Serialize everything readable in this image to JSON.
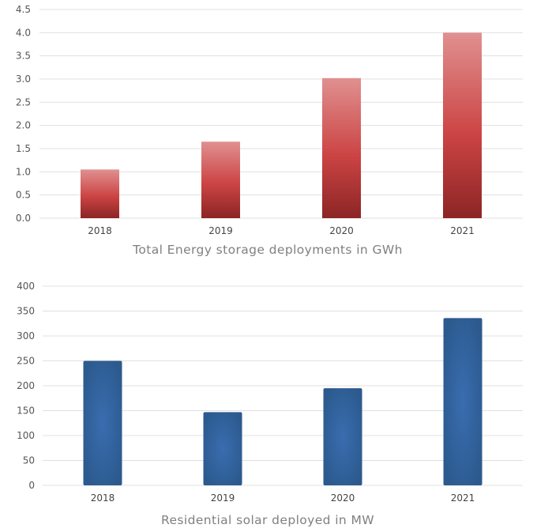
{
  "chart_data": [
    {
      "type": "bar",
      "title": "Total Energy storage deployments in GWh",
      "xlabel": "",
      "ylabel": "",
      "categories": [
        "2018",
        "2019",
        "2020",
        "2021"
      ],
      "values": [
        1.05,
        1.65,
        3.02,
        4.0
      ],
      "yticks": [
        "0.0",
        "0.5",
        "1.0",
        "1.5",
        "2.0",
        "2.5",
        "3.0",
        "3.5",
        "4.0",
        "4.5"
      ],
      "ylim": [
        0,
        4.5
      ],
      "grid": true,
      "legend": "none",
      "colors": {
        "top": "#e09090",
        "mid": "#cc4444",
        "bottom": "#8c2525"
      }
    },
    {
      "type": "bar",
      "title": "Residential solar deployed in MW",
      "xlabel": "",
      "ylabel": "",
      "categories": [
        "2018",
        "2019",
        "2020",
        "2021"
      ],
      "values": [
        250,
        147,
        195,
        336
      ],
      "yticks": [
        "0",
        "50",
        "100",
        "150",
        "200",
        "250",
        "300",
        "350",
        "400"
      ],
      "ylim": [
        0,
        400
      ],
      "grid": true,
      "legend": "none",
      "colors": {
        "center": "#3a6db0",
        "edge": "#2c5a8e"
      }
    }
  ]
}
